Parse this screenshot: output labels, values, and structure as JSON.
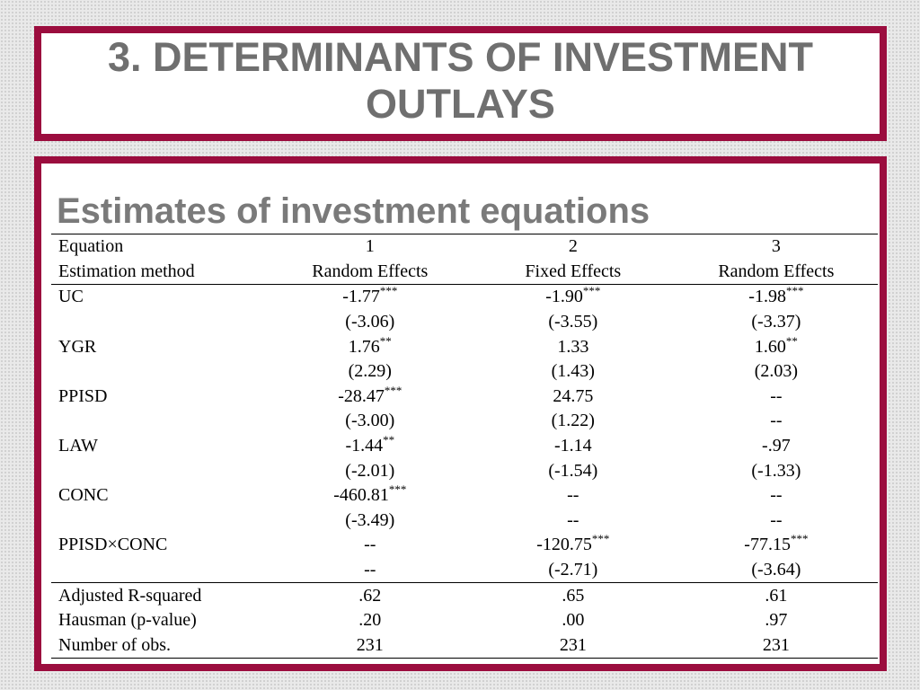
{
  "slide": {
    "title_line1": "3. DETERMINANTS OF INVESTMENT",
    "title_line2": "OUTLAYS",
    "subtitle": "Estimates of investment equations"
  },
  "colors": {
    "border": "#9b0d3e",
    "title_text": "#6f6f6f",
    "subtitle_text": "#7a7a7a"
  },
  "table": {
    "header": {
      "equation_label": "Equation",
      "equation_numbers": [
        "1",
        "2",
        "3"
      ],
      "method_label": "Estimation method",
      "methods": [
        "Random Effects",
        "Fixed Effects",
        "Random Effects"
      ]
    },
    "variables": [
      {
        "name": "UC",
        "coef": [
          "-1.77",
          "-1.90",
          "-1.98"
        ],
        "stars": [
          "***",
          "***",
          "***"
        ],
        "tstat": [
          "(-3.06)",
          "(-3.55)",
          "(-3.37)"
        ]
      },
      {
        "name": "YGR",
        "coef": [
          "1.76",
          "1.33",
          "1.60"
        ],
        "stars": [
          "**",
          "",
          "**"
        ],
        "tstat": [
          "(2.29)",
          "(1.43)",
          "(2.03)"
        ]
      },
      {
        "name": "PPISD",
        "coef": [
          "-28.47",
          "24.75",
          "--"
        ],
        "stars": [
          "***",
          "",
          ""
        ],
        "tstat": [
          "(-3.00)",
          "(1.22)",
          "--"
        ]
      },
      {
        "name": "LAW",
        "coef": [
          "-1.44",
          "-1.14",
          "-.97"
        ],
        "stars": [
          "**",
          "",
          ""
        ],
        "tstat": [
          "(-2.01)",
          "(-1.54)",
          "(-1.33)"
        ]
      },
      {
        "name": "CONC",
        "coef": [
          "-460.81",
          "--",
          "--"
        ],
        "stars": [
          "***",
          "",
          ""
        ],
        "tstat": [
          "(-3.49)",
          "--",
          "--"
        ]
      },
      {
        "name": "PPISD×CONC",
        "coef": [
          "--",
          "-120.75",
          "-77.15"
        ],
        "stars": [
          "",
          "***",
          "***"
        ],
        "tstat": [
          "--",
          "(-2.71)",
          "(-3.64)"
        ]
      }
    ],
    "stats": [
      {
        "label": "Adjusted R-squared",
        "values": [
          ".62",
          ".65",
          ".61"
        ]
      },
      {
        "label": "Hausman (p-value)",
        "values": [
          ".20",
          ".00",
          ".97"
        ]
      },
      {
        "label": "Number of obs.",
        "values": [
          "231",
          "231",
          "231"
        ]
      }
    ]
  }
}
